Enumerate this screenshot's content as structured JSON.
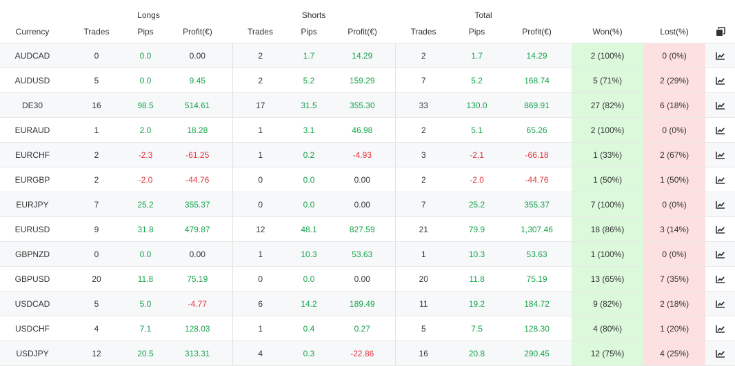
{
  "header": {
    "groups": {
      "longs": "Longs",
      "shorts": "Shorts",
      "total": "Total"
    },
    "columns": {
      "currency": "Currency",
      "long_trades": "Trades",
      "long_pips": "Pips",
      "long_profit": "Profit(€)",
      "short_trades": "Trades",
      "short_pips": "Pips",
      "short_profit": "Profit(€)",
      "total_trades": "Trades",
      "total_pips": "Pips",
      "total_profit": "Profit(€)",
      "won": "Won(%)",
      "lost": "Lost(%)"
    },
    "copy_icon": "copy-icon"
  },
  "colors": {
    "positive": "#16a34a",
    "negative": "#e0343c",
    "won_bg": "#dcf9dc",
    "lost_bg": "#fde1e1"
  },
  "row_icon": "chart-icon",
  "rows": [
    {
      "currency": "AUDCAD",
      "long_trades": "0",
      "long_pips": "0.0",
      "long_profit": "0.00",
      "short_trades": "2",
      "short_pips": "1.7",
      "short_profit": "14.29",
      "total_trades": "2",
      "total_pips": "1.7",
      "total_profit": "14.29",
      "won": "2 (100%)",
      "lost": "0 (0%)"
    },
    {
      "currency": "AUDUSD",
      "long_trades": "5",
      "long_pips": "0.0",
      "long_profit": "9.45",
      "short_trades": "2",
      "short_pips": "5.2",
      "short_profit": "159.29",
      "total_trades": "7",
      "total_pips": "5.2",
      "total_profit": "168.74",
      "won": "5 (71%)",
      "lost": "2 (29%)"
    },
    {
      "currency": "DE30",
      "long_trades": "16",
      "long_pips": "98.5",
      "long_profit": "514.61",
      "short_trades": "17",
      "short_pips": "31.5",
      "short_profit": "355.30",
      "total_trades": "33",
      "total_pips": "130.0",
      "total_profit": "869.91",
      "won": "27 (82%)",
      "lost": "6 (18%)"
    },
    {
      "currency": "EURAUD",
      "long_trades": "1",
      "long_pips": "2.0",
      "long_profit": "18.28",
      "short_trades": "1",
      "short_pips": "3.1",
      "short_profit": "46.98",
      "total_trades": "2",
      "total_pips": "5.1",
      "total_profit": "65.26",
      "won": "2 (100%)",
      "lost": "0 (0%)"
    },
    {
      "currency": "EURCHF",
      "long_trades": "2",
      "long_pips": "-2.3",
      "long_profit": "-61.25",
      "short_trades": "1",
      "short_pips": "0.2",
      "short_profit": "-4.93",
      "total_trades": "3",
      "total_pips": "-2.1",
      "total_profit": "-66.18",
      "won": "1 (33%)",
      "lost": "2 (67%)"
    },
    {
      "currency": "EURGBP",
      "long_trades": "2",
      "long_pips": "-2.0",
      "long_profit": "-44.76",
      "short_trades": "0",
      "short_pips": "0.0",
      "short_profit": "0.00",
      "total_trades": "2",
      "total_pips": "-2.0",
      "total_profit": "-44.76",
      "won": "1 (50%)",
      "lost": "1 (50%)"
    },
    {
      "currency": "EURJPY",
      "long_trades": "7",
      "long_pips": "25.2",
      "long_profit": "355.37",
      "short_trades": "0",
      "short_pips": "0.0",
      "short_profit": "0.00",
      "total_trades": "7",
      "total_pips": "25.2",
      "total_profit": "355.37",
      "won": "7 (100%)",
      "lost": "0 (0%)"
    },
    {
      "currency": "EURUSD",
      "long_trades": "9",
      "long_pips": "31.8",
      "long_profit": "479.87",
      "short_trades": "12",
      "short_pips": "48.1",
      "short_profit": "827.59",
      "total_trades": "21",
      "total_pips": "79.9",
      "total_profit": "1,307.46",
      "won": "18 (86%)",
      "lost": "3 (14%)"
    },
    {
      "currency": "GBPNZD",
      "long_trades": "0",
      "long_pips": "0.0",
      "long_profit": "0.00",
      "short_trades": "1",
      "short_pips": "10.3",
      "short_profit": "53.63",
      "total_trades": "1",
      "total_pips": "10.3",
      "total_profit": "53.63",
      "won": "1 (100%)",
      "lost": "0 (0%)"
    },
    {
      "currency": "GBPUSD",
      "long_trades": "20",
      "long_pips": "11.8",
      "long_profit": "75.19",
      "short_trades": "0",
      "short_pips": "0.0",
      "short_profit": "0.00",
      "total_trades": "20",
      "total_pips": "11.8",
      "total_profit": "75.19",
      "won": "13 (65%)",
      "lost": "7 (35%)"
    },
    {
      "currency": "USDCAD",
      "long_trades": "5",
      "long_pips": "5.0",
      "long_profit": "-4.77",
      "short_trades": "6",
      "short_pips": "14.2",
      "short_profit": "189.49",
      "total_trades": "11",
      "total_pips": "19.2",
      "total_profit": "184.72",
      "won": "9 (82%)",
      "lost": "2 (18%)"
    },
    {
      "currency": "USDCHF",
      "long_trades": "4",
      "long_pips": "7.1",
      "long_profit": "128.03",
      "short_trades": "1",
      "short_pips": "0.4",
      "short_profit": "0.27",
      "total_trades": "5",
      "total_pips": "7.5",
      "total_profit": "128.30",
      "won": "4 (80%)",
      "lost": "1 (20%)"
    },
    {
      "currency": "USDJPY",
      "long_trades": "12",
      "long_pips": "20.5",
      "long_profit": "313.31",
      "short_trades": "4",
      "short_pips": "0.3",
      "short_profit": "-22.86",
      "total_trades": "16",
      "total_pips": "20.8",
      "total_profit": "290.45",
      "won": "12 (75%)",
      "lost": "4 (25%)"
    }
  ]
}
